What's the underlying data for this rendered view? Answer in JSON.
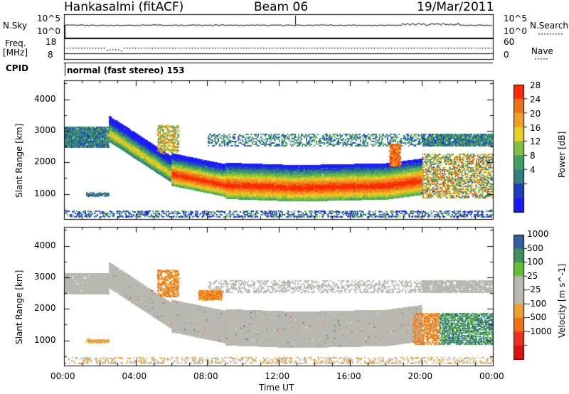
{
  "header": {
    "station": "Hankasalmi (fitACF)",
    "beam": "Beam 06",
    "date": "19/Mar/2011"
  },
  "strip": {
    "nsky_label": "N.Sky",
    "nsky_ticks": [
      "10^5",
      "10^0"
    ],
    "nsearch_label": "N.Search",
    "nsearch_ticks": [
      "10^5",
      "10^0"
    ],
    "freq_label_1": "Freq.",
    "freq_label_2": "[MHz]",
    "freq_ticks": [
      "18",
      "8"
    ],
    "nave_label": "Nave",
    "nave_ticks": [
      "60",
      "0"
    ],
    "cpid_label": "CPID",
    "cpid_text": "normal (fast stereo) 153"
  },
  "colors": {
    "power_scale": [
      "#1a1aff",
      "#1f3fbf",
      "#2f7f7f",
      "#3fa05f",
      "#7fc03f",
      "#e8d020",
      "#f0a020",
      "#f07018",
      "#ff2a00"
    ],
    "velocity_scale": [
      "#e01010",
      "#f03020",
      "#f07010",
      "#f0a030",
      "#b8b8b0",
      "#b8b8b0",
      "#60c030",
      "#3f9060",
      "#3060a0",
      "#2040c0"
    ],
    "ground_scatter": "#b8b8b0"
  },
  "chart_data": [
    {
      "type": "heatmap",
      "title": "",
      "xlabel": "",
      "ylabel": "Slant Range [km]",
      "xlim": [
        "00:00",
        "00:00"
      ],
      "ylim": [
        200,
        4600
      ],
      "yticks": [
        "4000",
        "3000",
        "2000",
        "1000"
      ],
      "colorbar": {
        "label": "Power [dB]",
        "ticks": [
          "28",
          "24",
          "20",
          "16",
          "12",
          "8",
          "4"
        ],
        "range": [
          0,
          30
        ]
      }
    },
    {
      "type": "heatmap",
      "title": "",
      "xlabel": "Time UT",
      "ylabel": "Slant Range [km]",
      "xlim": [
        "00:00",
        "00:00"
      ],
      "ylim": [
        200,
        4600
      ],
      "xticks": [
        "00:00",
        "04:00",
        "08:00",
        "12:00",
        "16:00",
        "20:00",
        "00:00"
      ],
      "yticks": [
        "4000",
        "3000",
        "2000",
        "1000"
      ],
      "colorbar": {
        "label": "Velocity [m s^-1]",
        "ticks": [
          "1000",
          "500",
          "100",
          "25",
          "-25",
          "-100",
          "-500",
          "-1000"
        ]
      }
    }
  ]
}
